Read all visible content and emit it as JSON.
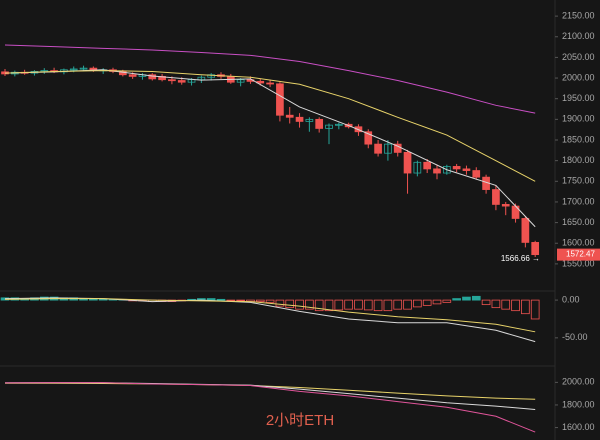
{
  "chart_data": [
    {
      "type": "candlestick",
      "up_color": "#26a69a",
      "down_color": "#ef5350",
      "open": [
        2015,
        2010,
        2014,
        2012,
        2016,
        2018,
        2015,
        2020,
        2022,
        2024,
        2018,
        2020,
        2016,
        2008,
        2004,
        2008,
        2004,
        1996,
        1994,
        1990,
        1996,
        2002,
        2008,
        2004,
        1990,
        1996,
        1992,
        1988,
        1986,
        1910,
        1905,
        1895,
        1900,
        1878,
        1886,
        1888,
        1882,
        1870,
        1840,
        1818,
        1840,
        1820,
        1770,
        1796,
        1780,
        1770,
        1786,
        1780,
        1776,
        1760,
        1730,
        1694,
        1690,
        1660,
        1602
      ],
      "high": [
        2022,
        2018,
        2020,
        2019,
        2024,
        2025,
        2023,
        2028,
        2030,
        2028,
        2024,
        2025,
        2020,
        2014,
        2012,
        2012,
        2010,
        2004,
        2002,
        2000,
        2006,
        2012,
        2014,
        2010,
        2000,
        2004,
        1998,
        1996,
        1990,
        1930,
        1915,
        1905,
        1905,
        1890,
        1892,
        1892,
        1888,
        1876,
        1850,
        1850,
        1848,
        1826,
        1800,
        1804,
        1790,
        1790,
        1792,
        1788,
        1784,
        1766,
        1740,
        1700,
        1696,
        1666,
        1606
      ],
      "low": [
        2005,
        2004,
        2008,
        2006,
        2010,
        2012,
        2009,
        2014,
        2016,
        2015,
        2010,
        2012,
        2004,
        1998,
        1996,
        1994,
        1992,
        1985,
        1984,
        1982,
        1988,
        1994,
        1998,
        1986,
        1980,
        1986,
        1982,
        1978,
        1895,
        1890,
        1880,
        1870,
        1868,
        1840,
        1876,
        1878,
        1860,
        1830,
        1810,
        1800,
        1810,
        1720,
        1762,
        1770,
        1755,
        1766,
        1772,
        1766,
        1754,
        1720,
        1680,
        1668,
        1650,
        1590,
        1566.66
      ],
      "close": [
        2010,
        2014,
        2012,
        2016,
        2018,
        2015,
        2020,
        2022,
        2024,
        2018,
        2020,
        2016,
        2008,
        2004,
        2008,
        1998,
        1996,
        1994,
        1990,
        1996,
        2002,
        2008,
        2004,
        1990,
        1996,
        1992,
        1988,
        1986,
        1910,
        1905,
        1895,
        1900,
        1878,
        1886,
        1888,
        1882,
        1870,
        1840,
        1818,
        1840,
        1820,
        1770,
        1796,
        1780,
        1770,
        1786,
        1780,
        1776,
        1760,
        1730,
        1694,
        1690,
        1660,
        1602,
        1572.47
      ],
      "series": [
        {
          "color": "#d9d9d9",
          "x": [
            0,
            5,
            10,
            15,
            20,
            25,
            30,
            35,
            40,
            45,
            50,
            54
          ],
          "values": [
            2012,
            2015,
            2020,
            2005,
            1995,
            1998,
            1930,
            1885,
            1835,
            1778,
            1740,
            1640
          ]
        },
        {
          "color": "#e8d36a",
          "x": [
            0,
            5,
            10,
            15,
            20,
            25,
            30,
            35,
            40,
            45,
            50,
            54
          ],
          "values": [
            2012,
            2016,
            2018,
            2016,
            2008,
            2002,
            1985,
            1950,
            1905,
            1862,
            1800,
            1750
          ]
        },
        {
          "color": "#c84fc4",
          "x": [
            0,
            5,
            10,
            15,
            20,
            25,
            30,
            35,
            40,
            45,
            50,
            54
          ],
          "values": [
            2080,
            2076,
            2072,
            2068,
            2062,
            2055,
            2040,
            2018,
            1994,
            1966,
            1934,
            1915
          ]
        }
      ],
      "ylim": [
        1511,
        2189
      ],
      "yticks": [
        {
          "value": 1550,
          "label": "1550.00"
        },
        {
          "value": 1600,
          "label": "1600.00"
        },
        {
          "value": 1650,
          "label": "1650.00"
        },
        {
          "value": 1700,
          "label": "1700.00"
        },
        {
          "value": 1750,
          "label": "1750.00"
        },
        {
          "value": 1800,
          "label": "1800.00"
        },
        {
          "value": 1850,
          "label": "1850.00"
        },
        {
          "value": 1900,
          "label": "1900.00"
        },
        {
          "value": 1950,
          "label": "1950.00"
        },
        {
          "value": 2000,
          "label": "2000.00"
        },
        {
          "value": 2050,
          "label": "2050.00"
        },
        {
          "value": 2100,
          "label": "2100.00"
        },
        {
          "value": 2150,
          "label": "2150.00"
        }
      ],
      "last_price": {
        "value": 1572.47,
        "label": "1572.47"
      },
      "low_label": {
        "value": 1566.66,
        "label": "1566.66 →"
      }
    },
    {
      "type": "macd",
      "up_color": "#26a69a",
      "down_color": "#ef5350",
      "histogram": [
        3,
        3,
        2,
        3,
        4,
        4,
        3,
        3,
        2,
        2,
        1,
        1,
        0.5,
        -1,
        -1,
        -2,
        -2,
        -2,
        -1,
        1,
        2,
        2,
        1,
        -1,
        -1,
        -2,
        -2,
        -3,
        -8,
        -10,
        -12,
        -12,
        -14,
        -14,
        -13,
        -12,
        -12,
        -13,
        -14,
        -14,
        -12,
        -12,
        -9,
        -7,
        -5,
        -3,
        2,
        4,
        5,
        -6,
        -10,
        -12,
        -14,
        -18,
        -25
      ],
      "series": [
        {
          "color": "#d9d9d9",
          "x": [
            0,
            5,
            10,
            15,
            20,
            25,
            30,
            35,
            40,
            45,
            50,
            54
          ],
          "values": [
            2,
            3,
            2,
            -2,
            0,
            -3,
            -15,
            -25,
            -30,
            -30,
            -40,
            -55
          ]
        },
        {
          "color": "#e8d36a",
          "x": [
            0,
            5,
            10,
            15,
            20,
            25,
            30,
            35,
            40,
            45,
            50,
            54
          ],
          "values": [
            1,
            2,
            2,
            0,
            -1,
            -2,
            -8,
            -16,
            -22,
            -26,
            -32,
            -42
          ]
        }
      ],
      "ylim": [
        -82,
        20
      ],
      "yticks": [
        {
          "value": 0,
          "label": "0.00"
        },
        {
          "value": -50,
          "label": "-50.00"
        }
      ]
    },
    {
      "type": "line",
      "series": [
        {
          "color": "#e8d36a",
          "x": [
            0,
            5,
            10,
            15,
            20,
            25,
            30,
            35,
            40,
            45,
            50,
            54
          ],
          "values": [
            1992,
            1992,
            1990,
            1986,
            1980,
            1972,
            1955,
            1930,
            1905,
            1880,
            1860,
            1850
          ]
        },
        {
          "color": "#d9d9d9",
          "x": [
            0,
            5,
            10,
            15,
            20,
            25,
            30,
            35,
            40,
            45,
            50,
            54
          ],
          "values": [
            1996,
            1998,
            1996,
            1990,
            1982,
            1975,
            1940,
            1900,
            1860,
            1820,
            1790,
            1760
          ]
        },
        {
          "color": "#e0559a",
          "x": [
            0,
            5,
            10,
            15,
            20,
            25,
            30,
            35,
            40,
            45,
            50,
            54
          ],
          "values": [
            1995,
            1998,
            1998,
            1985,
            1980,
            1972,
            1920,
            1880,
            1830,
            1780,
            1700,
            1560
          ]
        }
      ],
      "ylim": [
        1490,
        2127
      ],
      "yticks": [
        {
          "value": 2000,
          "label": "2000.00"
        },
        {
          "value": 1800,
          "label": "1800.00"
        },
        {
          "value": 1600,
          "label": "1600.00"
        }
      ],
      "annotation": "2小时ETH"
    }
  ]
}
